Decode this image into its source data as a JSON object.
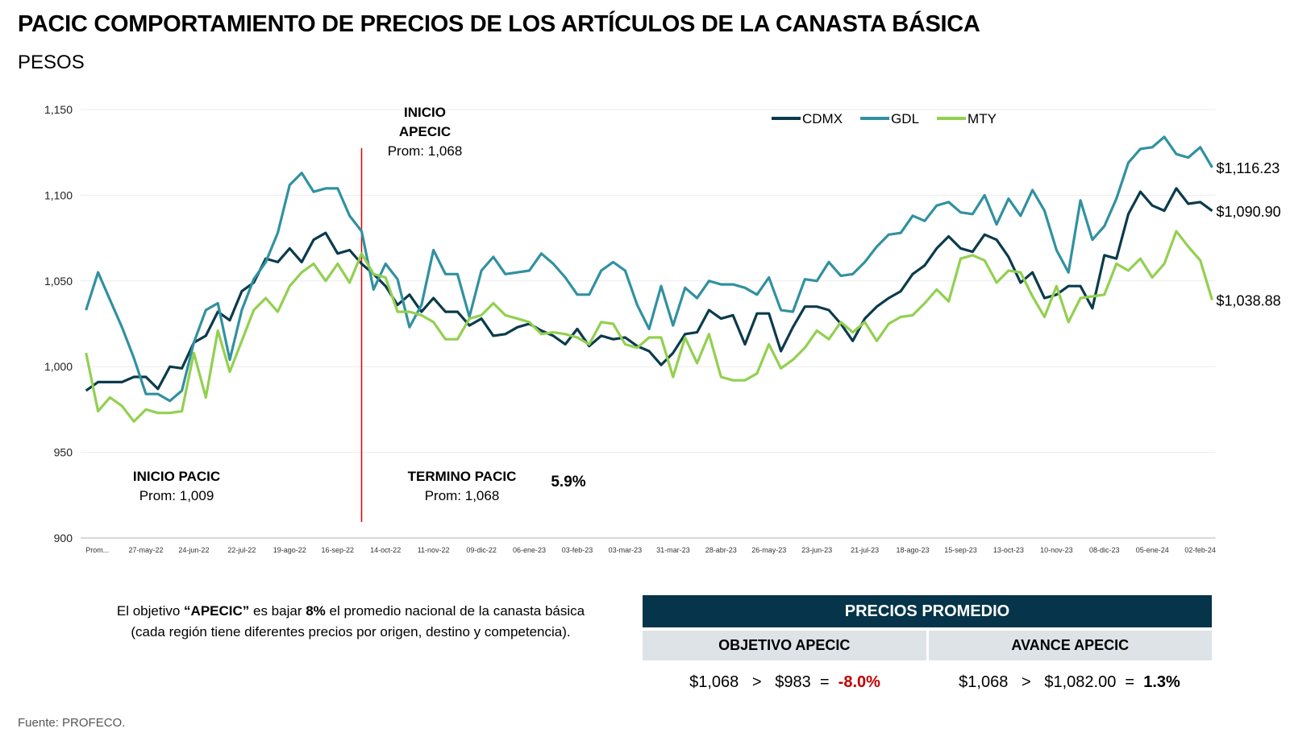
{
  "title": "PACIC COMPORTAMIENTO DE PRECIOS DE LOS ARTÍCULOS DE LA CANASTA BÁSICA",
  "subtitle": "PESOS",
  "annotations": {
    "inicio_apecic_title1": "INICIO",
    "inicio_apecic_title2": "APECIC",
    "inicio_apecic_prom": "Prom: 1,068",
    "inicio_pacic_title": "INICIO PACIC",
    "inicio_pacic_prom": "Prom: 1,009",
    "termino_pacic_title": "TERMINO PACIC",
    "termino_pacic_prom": "Prom: 1,068",
    "change_pct": "5.9%"
  },
  "chart_data": {
    "type": "line",
    "title": "PACIC COMPORTAMIENTO DE PRECIOS DE LOS ARTÍCULOS DE LA CANASTA BÁSICA",
    "ylabel": "PESOS",
    "ylim": [
      900,
      1150
    ],
    "y_ticks": [
      "1,150",
      "1,100",
      "1,050",
      "1,000",
      "950",
      "900"
    ],
    "y_tick_values": [
      1150,
      1100,
      1050,
      1000,
      950,
      900
    ],
    "grid": true,
    "legend": "top-center",
    "marker_line": {
      "index": 23,
      "color": "#e00000"
    },
    "x_ticks": [
      {
        "index": 0,
        "label": "Prom..."
      },
      {
        "index": 5,
        "label": "27-may-22"
      },
      {
        "index": 9,
        "label": "24-jun-22"
      },
      {
        "index": 13,
        "label": "22-jul-22"
      },
      {
        "index": 17,
        "label": "19-ago-22"
      },
      {
        "index": 21,
        "label": "16-sep-22"
      },
      {
        "index": 25,
        "label": "14-oct-22"
      },
      {
        "index": 29,
        "label": "11-nov-22"
      },
      {
        "index": 33,
        "label": "09-dic-22"
      },
      {
        "index": 37,
        "label": "06-ene-23"
      },
      {
        "index": 41,
        "label": "03-feb-23"
      },
      {
        "index": 45,
        "label": "03-mar-23"
      },
      {
        "index": 49,
        "label": "31-mar-23"
      },
      {
        "index": 53,
        "label": "28-abr-23"
      },
      {
        "index": 57,
        "label": "26-may-23"
      },
      {
        "index": 61,
        "label": "23-jun-23"
      },
      {
        "index": 65,
        "label": "21-jul-23"
      },
      {
        "index": 69,
        "label": "18-ago-23"
      },
      {
        "index": 73,
        "label": "15-sep-23"
      },
      {
        "index": 77,
        "label": "13-oct-23"
      },
      {
        "index": 81,
        "label": "10-nov-23"
      },
      {
        "index": 85,
        "label": "08-dic-23"
      },
      {
        "index": 89,
        "label": "05-ene-24"
      },
      {
        "index": 93,
        "label": "02-feb-24"
      }
    ],
    "series": [
      {
        "name": "CDMX",
        "color": "#0b3b4c",
        "end_label": "$1,090.90",
        "values": [
          986,
          991,
          991,
          991,
          994,
          994,
          987,
          1000,
          999,
          1014,
          1018,
          1032,
          1027,
          1044,
          1049,
          1063,
          1061,
          1069,
          1061,
          1074,
          1078,
          1066,
          1068,
          1060,
          1054,
          1047,
          1036,
          1042,
          1032,
          1040,
          1032,
          1032,
          1024,
          1028,
          1018,
          1019,
          1023,
          1025,
          1021,
          1018,
          1013,
          1022,
          1012,
          1018,
          1016,
          1017,
          1012,
          1009,
          1001,
          1008,
          1019,
          1020,
          1033,
          1028,
          1030,
          1013,
          1031,
          1031,
          1009,
          1023,
          1035,
          1035,
          1033,
          1025,
          1015,
          1028,
          1035,
          1040,
          1044,
          1054,
          1059,
          1069,
          1076,
          1069,
          1067,
          1077,
          1074,
          1064,
          1049,
          1055,
          1040,
          1042,
          1047,
          1047,
          1034,
          1065,
          1063,
          1089,
          1102,
          1094,
          1091,
          1104,
          1095,
          1096,
          1090.9
        ]
      },
      {
        "name": "GDL",
        "color": "#3191a0",
        "end_label": "$1,116.23",
        "values": [
          1033,
          1055,
          1039,
          1023,
          1005,
          984,
          984,
          980,
          986,
          1014,
          1033,
          1037,
          1004,
          1033,
          1051,
          1061,
          1078,
          1106,
          1113,
          1102,
          1104,
          1104,
          1088,
          1079,
          1045,
          1060,
          1051,
          1023,
          1036,
          1068,
          1054,
          1054,
          1029,
          1056,
          1064,
          1054,
          1055,
          1056,
          1066,
          1060,
          1052,
          1042,
          1042,
          1056,
          1061,
          1056,
          1036,
          1022,
          1047,
          1024,
          1046,
          1040,
          1050,
          1048,
          1048,
          1046,
          1042,
          1052,
          1033,
          1032,
          1051,
          1050,
          1061,
          1053,
          1054,
          1061,
          1070,
          1077,
          1078,
          1088,
          1085,
          1094,
          1096,
          1090,
          1089,
          1100,
          1083,
          1098,
          1088,
          1103,
          1091,
          1068,
          1055,
          1097,
          1074,
          1082,
          1098,
          1119,
          1127,
          1128,
          1134,
          1124,
          1122,
          1128,
          1116.23
        ]
      },
      {
        "name": "MTY",
        "color": "#92d050",
        "end_label": "$1,038.88",
        "values": [
          1008,
          974,
          982,
          977,
          968,
          975,
          973,
          973,
          974,
          1008,
          982,
          1021,
          997,
          1015,
          1033,
          1040,
          1032,
          1047,
          1055,
          1060,
          1050,
          1060,
          1049,
          1066,
          1054,
          1052,
          1032,
          1032,
          1030,
          1026,
          1016,
          1016,
          1028,
          1030,
          1037,
          1030,
          1028,
          1026,
          1019,
          1020,
          1019,
          1017,
          1013,
          1026,
          1025,
          1013,
          1011,
          1017,
          1017,
          994,
          1017,
          1002,
          1019,
          994,
          992,
          992,
          996,
          1013,
          999,
          1004,
          1011,
          1021,
          1016,
          1026,
          1020,
          1026,
          1015,
          1025,
          1029,
          1030,
          1037,
          1045,
          1038,
          1063,
          1065,
          1062,
          1049,
          1056,
          1055,
          1041,
          1029,
          1047,
          1026,
          1040,
          1041,
          1042,
          1060,
          1056,
          1063,
          1052,
          1060,
          1079,
          1070,
          1062,
          1038.88
        ]
      }
    ]
  },
  "bottom_text": {
    "p1": "El objetivo ",
    "p_bold1": "“APECIC”",
    "p2": " es bajar ",
    "p_bold2": "8%",
    "p3": " el promedio nacional de la canasta básica (cada región tiene diferentes precios por origen, destino y competencia)."
  },
  "price_table": {
    "header": "PRECIOS PROMEDIO",
    "col1_title": "OBJETIVO APECIC",
    "col2_title": "AVANCE APECIC",
    "col1_expr": "$1,068   >   $983  =  ",
    "col1_result": "-8.0%",
    "col2_expr": "$1,068   >   $1,082.00  =  ",
    "col2_result": "1.3%",
    "negative_color": "#c00000"
  },
  "source": "Fuente: PROFECO."
}
